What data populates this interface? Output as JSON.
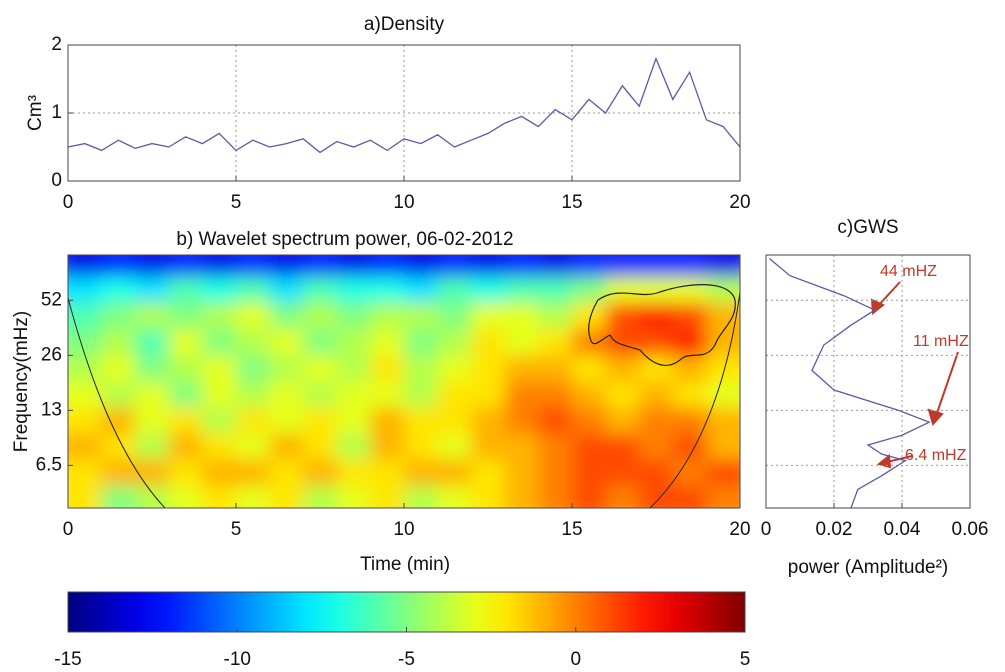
{
  "chart_data": [
    {
      "type": "line",
      "title": "a)Density",
      "ylabel": "Cm³",
      "color": "#5a5aa8",
      "grid": true,
      "x": [
        0,
        0.5,
        1,
        1.5,
        2,
        2.5,
        3,
        3.5,
        4,
        4.5,
        5,
        5.5,
        6,
        6.5,
        7,
        7.5,
        8,
        8.5,
        9,
        9.5,
        10,
        10.5,
        11,
        11.5,
        12,
        12.5,
        13,
        13.5,
        14,
        14.5,
        15,
        15.5,
        16,
        16.5,
        17,
        17.5,
        18,
        18.5,
        19,
        19.5,
        20
      ],
      "values": [
        0.5,
        0.55,
        0.45,
        0.6,
        0.48,
        0.55,
        0.5,
        0.65,
        0.55,
        0.7,
        0.45,
        0.6,
        0.5,
        0.55,
        0.62,
        0.42,
        0.58,
        0.5,
        0.6,
        0.45,
        0.62,
        0.55,
        0.68,
        0.5,
        0.6,
        0.7,
        0.85,
        0.95,
        0.8,
        1.05,
        0.9,
        1.2,
        1.0,
        1.4,
        1.1,
        1.8,
        1.2,
        1.6,
        0.9,
        0.8,
        0.5
      ],
      "xlim": [
        0,
        20
      ],
      "xticks": [
        0,
        5,
        10,
        15,
        20
      ],
      "ylim": [
        0,
        2
      ],
      "yticks": [
        0,
        1,
        2
      ]
    },
    {
      "type": "heatmap",
      "title": "b)  Wavelet spectrum power, 06-02-2012",
      "xlabel": "Time (min)",
      "ylabel": "Frequency(mHz)",
      "colormap": "jet",
      "log_y": true,
      "x": [
        0.5,
        1.5,
        2.5,
        3.5,
        4.5,
        5.5,
        6.5,
        7.5,
        8.5,
        9.5,
        10.5,
        11.5,
        12.5,
        13.5,
        14.5,
        15.5,
        16.5,
        17.5,
        18.5,
        19.5
      ],
      "y": [
        4.3,
        6,
        8.3,
        11.5,
        16,
        22,
        31,
        43,
        60,
        83
      ],
      "z": [
        [
          -2,
          -5,
          -4,
          -3,
          -2,
          -3,
          -2,
          -4,
          -3,
          -2,
          -4,
          -3,
          -2,
          -1,
          0,
          1,
          0,
          1,
          1,
          0
        ],
        [
          -2,
          -1,
          -1,
          -2,
          -1,
          -1,
          -2,
          -1,
          -2,
          -2,
          -1,
          -1,
          -2,
          -1,
          0,
          1,
          1,
          1,
          0,
          1
        ],
        [
          -1,
          -2,
          -4,
          -1,
          -2,
          -3,
          -1,
          -2,
          -4,
          -1,
          -2,
          -3,
          -1,
          -1,
          0,
          1,
          1,
          0,
          1,
          -1
        ],
        [
          -2,
          -1,
          -3,
          -2,
          -4,
          -2,
          -3,
          -2,
          -3,
          -1,
          -2,
          -2,
          -1,
          0,
          1,
          0,
          -1,
          0,
          0,
          -1
        ],
        [
          -3,
          -4,
          -3,
          -5,
          -3,
          -4,
          -3,
          -4,
          -3,
          -3,
          -4,
          -2,
          -2,
          0,
          0,
          -1,
          -2,
          -1,
          -2,
          -3
        ],
        [
          -4,
          -3,
          -5,
          -4,
          -3,
          -5,
          -4,
          -3,
          -4,
          -2,
          -4,
          -3,
          -2,
          -1,
          -1,
          -2,
          -1,
          -2,
          -1,
          -2
        ],
        [
          -5,
          -4,
          -6,
          -3,
          -5,
          -4,
          -3,
          -5,
          -4,
          -3,
          -5,
          -4,
          -2,
          -3,
          -2,
          0,
          1,
          1,
          2,
          -1
        ],
        [
          -6,
          -5,
          -4,
          -5,
          -4,
          -3,
          -5,
          -4,
          -5,
          -4,
          -4,
          -5,
          -3,
          -3,
          -4,
          -2,
          1,
          2,
          1,
          -1
        ],
        [
          -8,
          -7,
          -8,
          -6,
          -7,
          -6,
          -8,
          -6,
          -7,
          -7,
          -8,
          -6,
          -7,
          -6,
          -6,
          -5,
          -3,
          -3,
          -3,
          -4
        ],
        [
          -13,
          -12,
          -13,
          -12,
          -13,
          -12,
          -13,
          -12,
          -13,
          -12,
          -13,
          -12,
          -13,
          -12,
          -13,
          -12,
          -12,
          -12,
          -12,
          -13
        ]
      ],
      "xlim": [
        0,
        20
      ],
      "xticks": [
        0,
        5,
        10,
        15,
        20
      ],
      "ylim": [
        3.8,
        92
      ],
      "yticks": [
        52,
        26,
        13,
        6.5
      ],
      "clim": [
        -15,
        5
      ],
      "cticks": [
        -15,
        -10,
        -5,
        0,
        5
      ]
    },
    {
      "type": "line",
      "title": "c)GWS",
      "xlabel": "power (Amplitude²)",
      "color": "#5a5aa8",
      "grid": true,
      "y": [
        88,
        71,
        55,
        46,
        38,
        29.6,
        21.5,
        16.8,
        13,
        11.2,
        9.5,
        8.4,
        7.5,
        6.9,
        5.7,
        4.8,
        3.8
      ],
      "values": [
        0.001,
        0.007,
        0.023,
        0.032,
        0.025,
        0.017,
        0.0135,
        0.02,
        0.039,
        0.048,
        0.04,
        0.03,
        0.034,
        0.041,
        0.034,
        0.027,
        0.025
      ],
      "xlim": [
        0,
        0.06
      ],
      "xticks": [
        0,
        0.02,
        0.04,
        0.06
      ],
      "annotations": [
        "44 mHZ",
        "11 mHZ",
        "6.4 mHZ"
      ],
      "annotation_color": "#c0392b"
    }
  ]
}
